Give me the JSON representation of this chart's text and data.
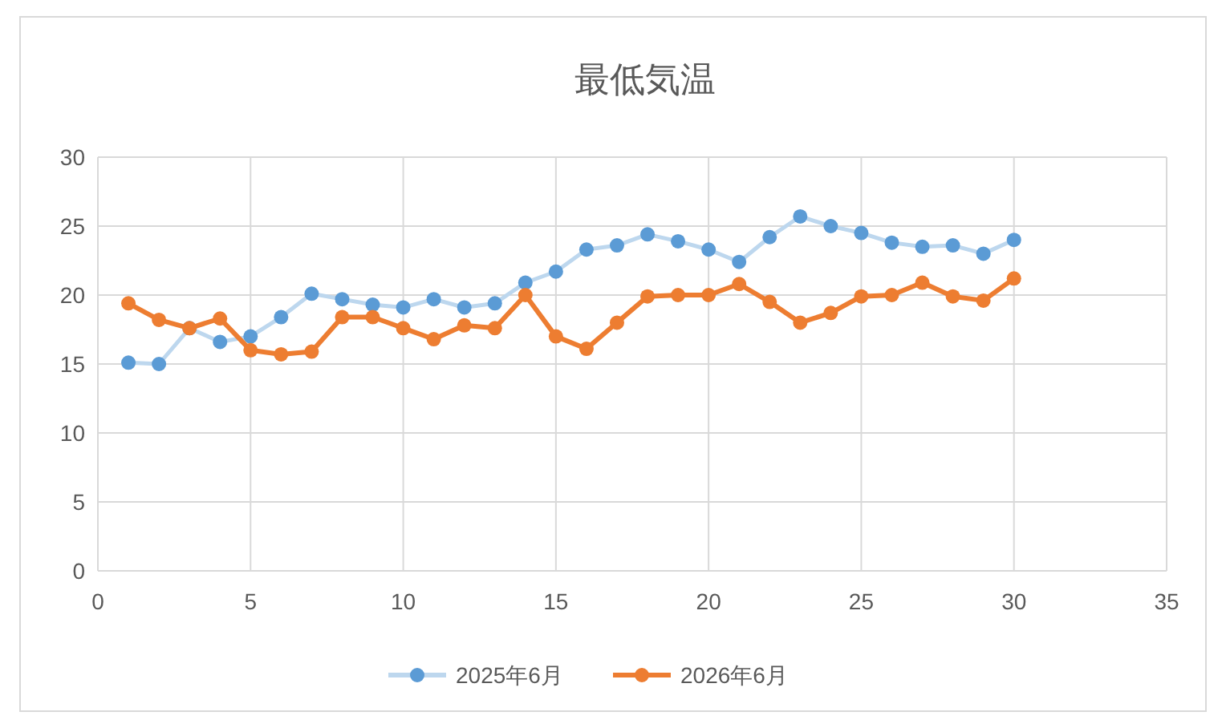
{
  "chart_data": {
    "type": "line",
    "title": "最低気温",
    "x": [
      1,
      2,
      3,
      4,
      5,
      6,
      7,
      8,
      9,
      10,
      11,
      12,
      13,
      14,
      15,
      16,
      17,
      18,
      19,
      20,
      21,
      22,
      23,
      24,
      25,
      26,
      27,
      28,
      29,
      30
    ],
    "series": [
      {
        "name": "2025年6月",
        "color": "#5b9bd5",
        "values": [
          15.1,
          15.0,
          17.6,
          16.6,
          17.0,
          18.4,
          20.1,
          19.7,
          19.3,
          19.1,
          19.7,
          19.1,
          19.4,
          20.9,
          21.7,
          23.3,
          23.6,
          24.4,
          23.9,
          23.3,
          22.4,
          24.2,
          25.7,
          25.0,
          24.5,
          23.8,
          23.5,
          23.6,
          23.0,
          24.0
        ]
      },
      {
        "name": "2026年6月",
        "color": "#ed7d31",
        "values": [
          19.4,
          18.2,
          17.6,
          18.3,
          16.0,
          15.7,
          15.9,
          18.4,
          18.4,
          17.6,
          16.8,
          17.8,
          17.6,
          20.0,
          17.0,
          16.1,
          18.0,
          19.9,
          20.0,
          20.0,
          20.8,
          19.5,
          18.0,
          18.7,
          19.9,
          20.0,
          20.9,
          19.9,
          19.6,
          21.2
        ]
      }
    ],
    "xlim": [
      0,
      35
    ],
    "xticks": [
      0,
      5,
      10,
      15,
      20,
      25,
      30,
      35
    ],
    "ylim": [
      0,
      30
    ],
    "yticks": [
      0,
      5,
      10,
      15,
      20,
      25,
      30
    ],
    "grid": true,
    "legend": "bottom",
    "marker": "circle",
    "line_style": "solid"
  }
}
